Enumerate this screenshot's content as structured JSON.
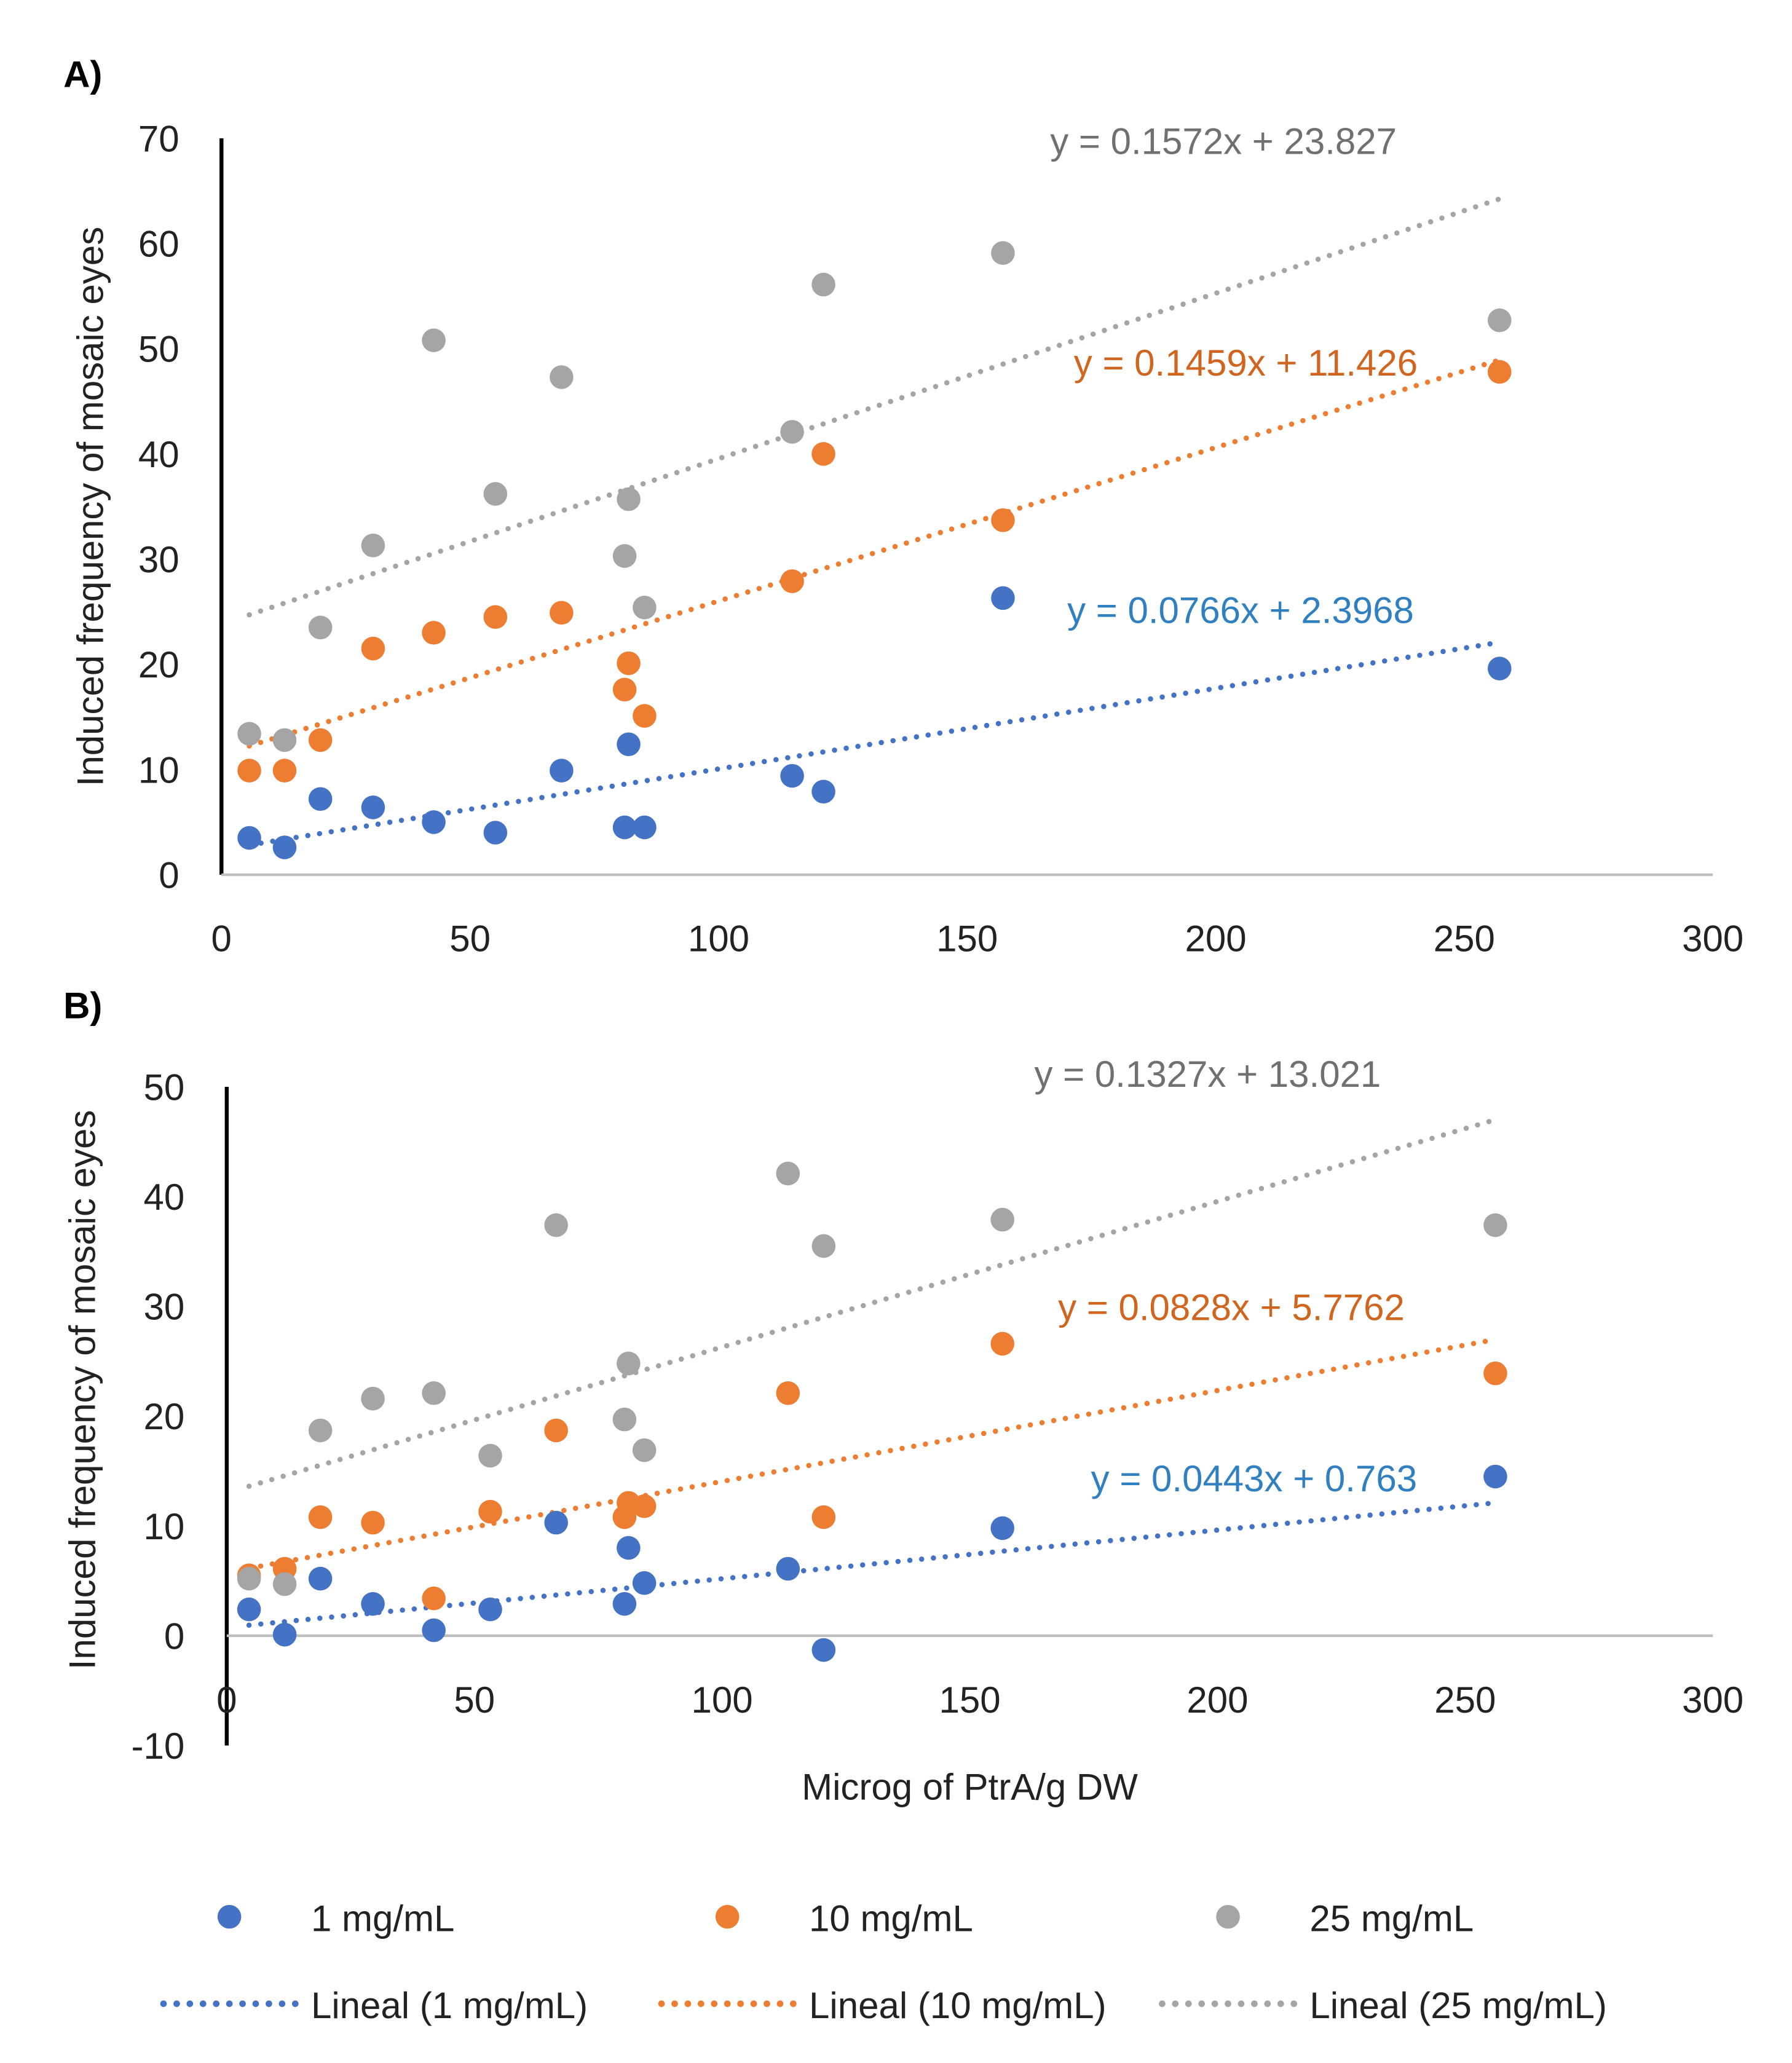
{
  "chart_data": [
    {
      "type": "scatter",
      "panel_label": "A)",
      "ylabel": "Induced frequency of mosaic eyes",
      "xlabel": "",
      "xlim": [
        0,
        300
      ],
      "ylim": [
        0,
        70
      ],
      "xticks": [
        "0",
        "50",
        "100",
        "150",
        "200",
        "250",
        "300"
      ],
      "yticks": [
        "0",
        "10",
        "20",
        "30",
        "40",
        "50",
        "60",
        "70"
      ],
      "grid": false,
      "series": [
        {
          "name": "1 mg/mL",
          "color": "#4472C4",
          "x": [
            5.6,
            12.7,
            19.9,
            30.5,
            42.7,
            55.1,
            68.4,
            81.1,
            81.9,
            85.1,
            114.8,
            121.1,
            157.2,
            257.1
          ],
          "y": [
            3.5,
            2.6,
            7.2,
            6.4,
            5.0,
            4.0,
            9.9,
            4.5,
            12.4,
            4.5,
            9.4,
            7.9,
            26.3,
            19.6
          ],
          "trend": {
            "name": "Lineal (1 mg/mL)",
            "slope": 0.0766,
            "intercept": 2.3968,
            "equation": "y = 0.0766x + 2.3968"
          }
        },
        {
          "name": "10 mg/mL",
          "color": "#ED7D31",
          "x": [
            5.6,
            12.7,
            19.9,
            30.5,
            42.7,
            55.1,
            68.4,
            81.1,
            81.9,
            85.1,
            114.8,
            121.1,
            157.2,
            257.1
          ],
          "y": [
            9.9,
            9.9,
            12.8,
            21.5,
            23.0,
            24.5,
            24.9,
            17.6,
            20.1,
            15.1,
            27.9,
            40.0,
            33.7,
            47.8
          ],
          "trend": {
            "name": "Lineal (10 mg/mL)",
            "slope": 0.1459,
            "intercept": 11.426,
            "equation": "y = 0.1459x + 11.426"
          }
        },
        {
          "name": "25 mg/mL",
          "color": "#A5A5A5",
          "x": [
            5.6,
            12.7,
            19.9,
            30.5,
            42.7,
            55.1,
            68.4,
            81.1,
            81.9,
            85.1,
            114.8,
            121.1,
            157.2,
            257.1
          ],
          "y": [
            13.4,
            12.8,
            23.5,
            31.3,
            50.8,
            36.2,
            47.3,
            30.3,
            35.7,
            25.4,
            42.1,
            56.1,
            59.1,
            52.7
          ],
          "trend": {
            "name": "Lineal (25 mg/mL)",
            "slope": 0.1572,
            "intercept": 23.827,
            "equation": "y = 0.1572x + 23.827"
          }
        }
      ]
    },
    {
      "type": "scatter",
      "panel_label": "B)",
      "ylabel": "Induced frequency of mosaic eyes",
      "xlabel": "Microg of PtrA/g DW",
      "xlim": [
        0,
        300
      ],
      "ylim": [
        -10,
        50
      ],
      "xticks": [
        "0",
        "50",
        "100",
        "150",
        "200",
        "250",
        "300"
      ],
      "yticks": [
        "-10",
        "0",
        "10",
        "20",
        "30",
        "40",
        "50"
      ],
      "grid": false,
      "series": [
        {
          "name": "1 mg/mL",
          "color": "#4472C4",
          "x": [
            4.5,
            11.7,
            18.9,
            29.5,
            41.8,
            53.2,
            66.5,
            80.3,
            81.1,
            84.3,
            113.3,
            120.5,
            156.6,
            256.1
          ],
          "y": [
            2.4,
            0.1,
            5.2,
            2.9,
            0.5,
            2.4,
            10.3,
            2.9,
            8.0,
            4.8,
            6.1,
            -1.3,
            9.8,
            14.5
          ],
          "trend": {
            "name": "Lineal (1 mg/mL)",
            "slope": 0.0443,
            "intercept": 0.763,
            "equation": "y = 0.0443x + 0.763"
          }
        },
        {
          "name": "10 mg/mL",
          "color": "#ED7D31",
          "x": [
            4.5,
            11.7,
            18.9,
            29.5,
            41.8,
            53.2,
            66.5,
            80.3,
            81.1,
            84.3,
            113.3,
            120.5,
            156.6,
            256.1
          ],
          "y": [
            5.5,
            6.1,
            10.8,
            10.3,
            3.4,
            11.3,
            18.7,
            10.8,
            12.1,
            11.8,
            22.1,
            10.8,
            26.6,
            23.9
          ],
          "trend": {
            "name": "Lineal (10 mg/mL)",
            "slope": 0.0828,
            "intercept": 5.7762,
            "equation": "y = 0.0828x + 5.7762"
          }
        },
        {
          "name": "25 mg/mL",
          "color": "#A5A5A5",
          "x": [
            4.5,
            11.7,
            18.9,
            29.5,
            41.8,
            53.2,
            66.5,
            80.3,
            81.1,
            84.3,
            113.3,
            120.5,
            156.6,
            256.1
          ],
          "y": [
            5.2,
            4.7,
            18.7,
            21.6,
            22.1,
            16.4,
            37.4,
            19.7,
            24.8,
            16.9,
            42.1,
            35.5,
            37.9,
            37.4
          ],
          "trend": {
            "name": "Lineal (25 mg/mL)",
            "slope": 0.1327,
            "intercept": 13.021,
            "equation": "y = 0.1327x + 13.021"
          }
        }
      ]
    }
  ],
  "legend": {
    "placement": "bottom",
    "markers": [
      "1 mg/mL",
      "10 mg/mL",
      "25 mg/mL"
    ],
    "lines": [
      "Lineal (1 mg/mL)",
      "Lineal (10 mg/mL)",
      "Lineal (25 mg/mL)"
    ]
  }
}
